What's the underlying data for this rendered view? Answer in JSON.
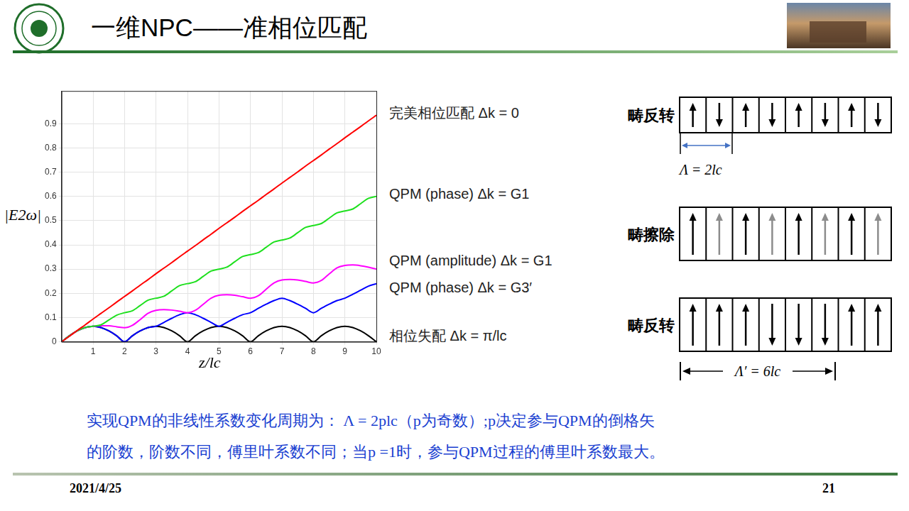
{
  "header": {
    "title": "一维NPC——准相位匹配"
  },
  "chart_data": {
    "type": "line",
    "x_label": "z/lc",
    "y_label": "|E2ω|",
    "grid": true,
    "xlim": [
      0,
      10
    ],
    "xticks": [
      1,
      2,
      3,
      4,
      5,
      6,
      7,
      8,
      9,
      10
    ],
    "ylim": [
      0,
      1.035
    ],
    "yticks": [
      0,
      0.1,
      0.2,
      0.3,
      0.4,
      0.5,
      0.6,
      0.7,
      0.8,
      0.9
    ],
    "x": [
      0,
      0.25,
      0.5,
      0.75,
      1,
      1.25,
      1.5,
      1.75,
      2,
      2.25,
      2.5,
      2.75,
      3,
      3.25,
      3.5,
      3.75,
      4,
      4.25,
      4.5,
      4.75,
      5,
      5.25,
      5.5,
      5.75,
      6,
      6.25,
      6.5,
      6.75,
      7,
      7.25,
      7.5,
      7.75,
      8,
      8.25,
      8.5,
      8.75,
      9,
      9.25,
      9.5,
      9.75,
      10
    ],
    "series": [
      {
        "name": "完美相位匹配  Δk = 0",
        "color": "#ff0000",
        "values": [
          0,
          0.023,
          0.047,
          0.07,
          0.094,
          0.117,
          0.14,
          0.164,
          0.187,
          0.21,
          0.234,
          0.257,
          0.281,
          0.304,
          0.327,
          0.351,
          0.374,
          0.397,
          0.421,
          0.444,
          0.468,
          0.491,
          0.514,
          0.538,
          0.561,
          0.584,
          0.608,
          0.631,
          0.655,
          0.678,
          0.701,
          0.725,
          0.748,
          0.771,
          0.795,
          0.818,
          0.842,
          0.865,
          0.888,
          0.912,
          0.935
        ]
      },
      {
        "name": "QPM (phase)  Δk = G1",
        "color": "#1ee01e",
        "values": [
          0,
          0.025,
          0.045,
          0.059,
          0.064,
          0.07,
          0.09,
          0.11,
          0.12,
          0.128,
          0.15,
          0.172,
          0.18,
          0.188,
          0.21,
          0.232,
          0.24,
          0.248,
          0.27,
          0.292,
          0.3,
          0.308,
          0.33,
          0.352,
          0.36,
          0.368,
          0.39,
          0.412,
          0.42,
          0.428,
          0.45,
          0.472,
          0.48,
          0.488,
          0.51,
          0.532,
          0.54,
          0.548,
          0.57,
          0.592,
          0.6
        ]
      },
      {
        "name": "QPM (amplitude)  Δk = G1",
        "color": "#ff00ff",
        "values": [
          0,
          0.025,
          0.045,
          0.059,
          0.064,
          0.066,
          0.066,
          0.062,
          0.058,
          0.068,
          0.092,
          0.118,
          0.13,
          0.133,
          0.131,
          0.126,
          0.12,
          0.13,
          0.155,
          0.18,
          0.192,
          0.194,
          0.192,
          0.186,
          0.18,
          0.19,
          0.217,
          0.243,
          0.255,
          0.257,
          0.255,
          0.249,
          0.243,
          0.253,
          0.28,
          0.305,
          0.315,
          0.317,
          0.314,
          0.308,
          0.3
        ]
      },
      {
        "name": "QPM (phase)  Δk = G3′",
        "color": "#0000ff",
        "values": [
          0,
          0.025,
          0.045,
          0.059,
          0.064,
          0.059,
          0.045,
          0.025,
          0,
          0.025,
          0.045,
          0.059,
          0.064,
          0.08,
          0.097,
          0.112,
          0.12,
          0.112,
          0.097,
          0.08,
          0.064,
          0.08,
          0.097,
          0.112,
          0.12,
          0.138,
          0.155,
          0.17,
          0.18,
          0.17,
          0.155,
          0.138,
          0.12,
          0.138,
          0.155,
          0.17,
          0.18,
          0.196,
          0.213,
          0.23,
          0.24
        ]
      },
      {
        "name": "相位失配  Δk = π/lc",
        "color": "#000000",
        "values": [
          0,
          0.025,
          0.045,
          0.059,
          0.064,
          0.059,
          0.045,
          0.025,
          0,
          0.025,
          0.045,
          0.059,
          0.064,
          0.059,
          0.045,
          0.025,
          0,
          0.025,
          0.045,
          0.059,
          0.064,
          0.059,
          0.045,
          0.025,
          0,
          0.025,
          0.045,
          0.059,
          0.064,
          0.059,
          0.045,
          0.025,
          0,
          0.025,
          0.045,
          0.059,
          0.064,
          0.059,
          0.045,
          0.025,
          0
        ]
      }
    ]
  },
  "diagrams": [
    {
      "label": "畴反转",
      "period_label": "Λ = 2lc"
    },
    {
      "label": "畴擦除"
    },
    {
      "label": "畴反转",
      "period_label": "Λ′ = 6lc"
    }
  ],
  "caption": [
    "实现QPM的非线性系数变化周期为：  Λ = 2plc（p为奇数）;p决定参与QPM的倒格矢",
    "的阶数，阶数不同，傅里叶系数不同；当p =1时，参与QPM过程的傅里叶系数最大。"
  ],
  "footer": {
    "date": "2021/4/25",
    "page": "21"
  }
}
